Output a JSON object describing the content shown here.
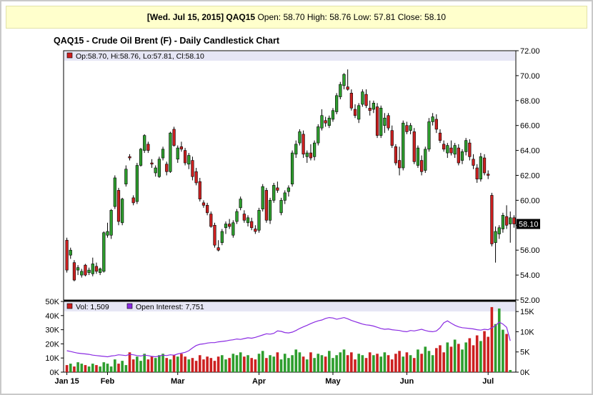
{
  "header": {
    "date_label": "[Wed. Jul 15, 2015]",
    "symbol": "QAQ15",
    "open_label": "Open:",
    "open_value": "58.70",
    "high_label": "High:",
    "high_value": "58.76",
    "low_label": "Low:",
    "low_value": "57.81",
    "close_label": "Close:",
    "close_value": "58.10"
  },
  "title": "QAQ15 - Crude Oil Brent (F) - Daily Candlestick Chart",
  "price_legend": "Op:58.70, Hi:58.76, Lo:57.81, Cl:58.10",
  "last_price_tag": "58.10",
  "volume_legend": "Vol: 1,509",
  "oi_legend": "Open Interest: 7,751",
  "colors": {
    "up": "#2e9e2e",
    "down": "#cc2020",
    "open_interest": "#8a2be2",
    "legend_band": "#e6e6f5",
    "grid": "#e4e4e4"
  },
  "chart_data": [
    {
      "type": "candlestick",
      "title": "QAQ15 - Crude Oil Brent (F) - Daily Candlestick Chart",
      "ylim": [
        52,
        72
      ],
      "y_ticks": [
        "72.00",
        "70.00",
        "68.00",
        "66.00",
        "64.00",
        "62.00",
        "60.00",
        "58.00",
        "56.00",
        "54.00",
        "52.00"
      ],
      "x_ticks": [
        {
          "label": "Jan 15",
          "index": 0
        },
        {
          "label": "Feb",
          "index": 11
        },
        {
          "label": "Mar",
          "index": 30
        },
        {
          "label": "Apr",
          "index": 52
        },
        {
          "label": "May",
          "index": 72
        },
        {
          "label": "Jun",
          "index": 92
        },
        {
          "label": "Jul",
          "index": 114
        }
      ],
      "ohlc": [
        [
          56.8,
          57.0,
          54.2,
          54.4
        ],
        [
          55.6,
          56.2,
          55.3,
          56.0
        ],
        [
          55.0,
          55.2,
          53.5,
          53.6
        ],
        [
          54.4,
          54.8,
          54.0,
          54.6
        ],
        [
          54.0,
          54.5,
          53.8,
          54.3
        ],
        [
          54.8,
          54.9,
          53.9,
          54.0
        ],
        [
          54.2,
          54.6,
          54.0,
          54.4
        ],
        [
          54.1,
          55.4,
          53.9,
          54.9
        ],
        [
          54.7,
          55.0,
          54.1,
          54.3
        ],
        [
          54.2,
          54.6,
          54.0,
          54.5
        ],
        [
          54.3,
          57.5,
          54.2,
          57.4
        ],
        [
          57.2,
          58.2,
          57.0,
          57.5
        ],
        [
          57.2,
          59.3,
          56.9,
          59.2
        ],
        [
          59.5,
          62.0,
          59.3,
          61.8
        ],
        [
          60.8,
          61.0,
          58.0,
          58.3
        ],
        [
          58.2,
          60.2,
          58.0,
          60.1
        ],
        [
          61.3,
          62.8,
          61.1,
          62.5
        ],
        [
          63.5,
          63.7,
          63.2,
          63.4
        ],
        [
          60.2,
          60.4,
          59.6,
          59.8
        ],
        [
          59.9,
          63.0,
          59.7,
          62.8
        ],
        [
          62.8,
          64.2,
          62.7,
          64.1
        ],
        [
          64.0,
          65.3,
          63.8,
          65.2
        ],
        [
          64.5,
          64.7,
          63.8,
          64.0
        ],
        [
          63.0,
          63.3,
          62.6,
          62.9
        ],
        [
          62.2,
          62.8,
          61.9,
          62.6
        ],
        [
          61.9,
          63.5,
          61.8,
          63.3
        ],
        [
          63.4,
          64.3,
          63.2,
          64.1
        ],
        [
          62.9,
          63.1,
          62.0,
          62.3
        ],
        [
          62.3,
          65.5,
          62.2,
          65.4
        ],
        [
          65.7,
          65.9,
          64.3,
          64.4
        ],
        [
          63.3,
          64.4,
          63.0,
          64.2
        ],
        [
          64.3,
          64.7,
          63.9,
          64.1
        ],
        [
          64.0,
          64.2,
          62.8,
          63.0
        ],
        [
          62.9,
          63.8,
          62.5,
          63.6
        ],
        [
          63.2,
          63.5,
          61.6,
          61.9
        ],
        [
          62.3,
          62.6,
          61.2,
          61.4
        ],
        [
          61.5,
          61.8,
          59.9,
          60.1
        ],
        [
          59.8,
          60.0,
          59.4,
          59.6
        ],
        [
          59.6,
          59.8,
          58.8,
          59.0
        ],
        [
          58.9,
          59.1,
          57.8,
          57.9
        ],
        [
          58.0,
          58.2,
          56.2,
          56.4
        ],
        [
          56.2,
          56.8,
          55.9,
          56.0
        ],
        [
          56.6,
          57.7,
          56.4,
          57.5
        ],
        [
          57.8,
          58.3,
          57.3,
          58.1
        ],
        [
          58.1,
          58.5,
          57.7,
          57.9
        ],
        [
          57.2,
          58.4,
          57.0,
          58.2
        ],
        [
          58.3,
          59.3,
          58.1,
          59.1
        ],
        [
          59.4,
          60.3,
          59.2,
          60.1
        ],
        [
          58.9,
          59.2,
          58.2,
          58.4
        ],
        [
          58.2,
          58.8,
          57.9,
          58.6
        ],
        [
          58.3,
          58.6,
          57.6,
          57.8
        ],
        [
          57.7,
          58.0,
          57.3,
          57.5
        ],
        [
          57.6,
          59.4,
          57.4,
          59.2
        ],
        [
          59.3,
          61.3,
          59.1,
          61.1
        ],
        [
          60.8,
          61.0,
          58.2,
          58.4
        ],
        [
          58.4,
          60.2,
          58.1,
          60.0
        ],
        [
          60.0,
          61.4,
          59.8,
          61.2
        ],
        [
          61.0,
          61.5,
          60.6,
          60.8
        ],
        [
          59.0,
          60.2,
          58.8,
          60.0
        ],
        [
          60.0,
          60.8,
          59.7,
          60.6
        ],
        [
          60.7,
          61.2,
          60.3,
          61.0
        ],
        [
          61.3,
          64.0,
          61.1,
          63.8
        ],
        [
          63.7,
          64.8,
          63.4,
          64.5
        ],
        [
          64.6,
          65.7,
          64.4,
          65.5
        ],
        [
          65.3,
          65.6,
          63.4,
          63.7
        ],
        [
          63.5,
          64.0,
          63.0,
          63.8
        ],
        [
          63.8,
          64.5,
          63.2,
          63.4
        ],
        [
          63.5,
          64.8,
          63.2,
          64.6
        ],
        [
          64.6,
          66.1,
          64.4,
          65.9
        ],
        [
          65.8,
          67.3,
          65.6,
          66.8
        ],
        [
          66.4,
          66.7,
          65.9,
          66.2
        ],
        [
          66.0,
          66.8,
          65.8,
          66.6
        ],
        [
          66.5,
          67.4,
          66.3,
          67.2
        ],
        [
          67.1,
          68.6,
          66.9,
          68.4
        ],
        [
          68.3,
          69.5,
          68.1,
          69.3
        ],
        [
          69.2,
          70.2,
          68.9,
          70.1
        ],
        [
          69.1,
          70.5,
          68.8,
          68.9
        ],
        [
          68.6,
          68.9,
          67.2,
          67.4
        ],
        [
          67.3,
          67.7,
          66.6,
          66.8
        ],
        [
          66.5,
          67.8,
          66.2,
          67.6
        ],
        [
          67.7,
          68.9,
          67.5,
          68.7
        ],
        [
          68.5,
          68.9,
          67.4,
          67.6
        ],
        [
          67.4,
          68.0,
          66.8,
          67.2
        ],
        [
          67.3,
          68.0,
          67.0,
          67.8
        ],
        [
          67.5,
          67.8,
          65.0,
          65.2
        ],
        [
          65.2,
          67.6,
          65.0,
          67.4
        ],
        [
          66.0,
          67.0,
          65.4,
          66.6
        ],
        [
          66.8,
          67.0,
          65.6,
          65.8
        ],
        [
          65.6,
          66.0,
          64.2,
          64.4
        ],
        [
          64.3,
          64.5,
          62.8,
          63.0
        ],
        [
          63.2,
          64.3,
          62.0,
          62.6
        ],
        [
          62.6,
          66.4,
          62.4,
          66.2
        ],
        [
          66.0,
          66.3,
          65.3,
          65.5
        ],
        [
          65.6,
          66.2,
          65.3,
          66.0
        ],
        [
          65.5,
          65.8,
          62.9,
          63.1
        ],
        [
          62.8,
          64.4,
          62.6,
          64.2
        ],
        [
          63.2,
          63.6,
          62.0,
          62.3
        ],
        [
          62.4,
          64.3,
          62.2,
          64.1
        ],
        [
          64.1,
          66.6,
          63.9,
          66.3
        ],
        [
          66.3,
          67.0,
          66.0,
          66.7
        ],
        [
          66.5,
          66.9,
          65.4,
          65.7
        ],
        [
          65.4,
          65.7,
          64.6,
          64.8
        ],
        [
          64.5,
          64.8,
          63.9,
          64.1
        ],
        [
          63.8,
          64.6,
          63.4,
          64.4
        ],
        [
          64.2,
          64.8,
          63.6,
          63.8
        ],
        [
          63.7,
          64.6,
          63.4,
          64.4
        ],
        [
          64.2,
          64.5,
          62.8,
          63.0
        ],
        [
          63.2,
          64.1,
          62.9,
          63.9
        ],
        [
          63.9,
          65.0,
          63.6,
          64.8
        ],
        [
          64.6,
          64.9,
          63.2,
          63.5
        ],
        [
          63.3,
          63.7,
          62.5,
          62.8
        ],
        [
          62.6,
          62.9,
          61.4,
          61.7
        ],
        [
          61.7,
          63.8,
          61.5,
          63.5
        ],
        [
          63.4,
          63.7,
          62.0,
          62.2
        ],
        [
          62.1,
          62.4,
          61.7,
          62.0
        ],
        [
          60.4,
          60.6,
          56.3,
          56.5
        ],
        [
          56.6,
          57.9,
          55.0,
          57.5
        ],
        [
          57.3,
          58.0,
          56.9,
          57.8
        ],
        [
          57.7,
          59.0,
          57.4,
          58.8
        ],
        [
          58.7,
          59.6,
          57.7,
          58.0
        ],
        [
          58.1,
          59.1,
          56.6,
          58.6
        ],
        [
          58.6,
          58.8,
          57.8,
          58.1
        ]
      ]
    },
    {
      "type": "bar+line",
      "series": [
        {
          "name": "Vol",
          "type": "bar",
          "ylim": [
            0,
            50000
          ],
          "y_ticks": [
            "50K",
            "40K",
            "30K",
            "20K",
            "10K",
            "0K"
          ],
          "values": [
            5000,
            6000,
            4000,
            7000,
            6000,
            5000,
            4000,
            6000,
            5000,
            4000,
            7000,
            6000,
            4000,
            9000,
            6000,
            8000,
            5000,
            14000,
            9000,
            11000,
            8000,
            13000,
            9000,
            11000,
            10000,
            12000,
            13000,
            10000,
            9000,
            12000,
            11000,
            13000,
            11000,
            9000,
            10000,
            8000,
            12000,
            9000,
            11000,
            10000,
            8000,
            11000,
            12000,
            9000,
            10000,
            13000,
            12000,
            14000,
            11000,
            12000,
            10000,
            9000,
            13000,
            15000,
            10000,
            12000,
            11000,
            14000,
            9000,
            13000,
            10000,
            12000,
            16000,
            14000,
            11000,
            9000,
            14000,
            10000,
            13000,
            12000,
            11000,
            15000,
            10000,
            12000,
            14000,
            16000,
            12000,
            14000,
            9000,
            13000,
            12000,
            10000,
            14000,
            12000,
            13000,
            11000,
            14000,
            12000,
            9000,
            13000,
            15000,
            11000,
            14000,
            12000,
            10000,
            16000,
            13000,
            18000,
            15000,
            12000,
            17000,
            19000,
            14000,
            21000,
            18000,
            23000,
            20000,
            16000,
            21000,
            24000,
            19000,
            26000,
            22000,
            29000,
            25000,
            46000,
            34000,
            45000,
            30000,
            27000,
            1509
          ]
        },
        {
          "name": "Open Interest",
          "type": "line",
          "ylim": [
            0,
            17500
          ],
          "y_ticks": [
            "15K",
            "10K",
            "5K",
            "0K"
          ],
          "values": [
            5300,
            5100,
            4900,
            4700,
            4600,
            4500,
            4400,
            4200,
            4100,
            4000,
            3900,
            3800,
            4000,
            4100,
            4300,
            4200,
            4100,
            4400,
            4300,
            4100,
            4000,
            4200,
            4100,
            3900,
            3800,
            4000,
            4200,
            4100,
            4300,
            4200,
            4500,
            4700,
            4900,
            5300,
            6000,
            6600,
            6900,
            7000,
            7200,
            7300,
            7300,
            7500,
            7600,
            7700,
            7900,
            8000,
            8200,
            8100,
            8300,
            8500,
            8400,
            8600,
            8900,
            9200,
            9500,
            9400,
            9600,
            10200,
            10100,
            9800,
            9700,
            9900,
            10300,
            10800,
            11200,
            11600,
            12000,
            12400,
            12700,
            12900,
            13300,
            13500,
            13400,
            13100,
            13300,
            13500,
            13200,
            12800,
            12500,
            12200,
            11900,
            11700,
            11600,
            11400,
            11100,
            10800,
            10600,
            10700,
            10500,
            10400,
            10300,
            10100,
            10000,
            10300,
            10200,
            10400,
            10600,
            10300,
            10100,
            10000,
            10200,
            11000,
            12200,
            12700,
            12100,
            11600,
            11200,
            11000,
            10900,
            10800,
            10700,
            10500,
            10400,
            10600,
            10500,
            11000,
            11500,
            12400,
            11900,
            11100,
            7751
          ]
        }
      ]
    }
  ]
}
